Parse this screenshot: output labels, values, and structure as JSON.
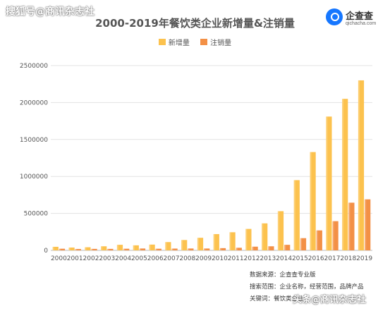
{
  "watermark_top": "搜狐号@商讯杂志社",
  "logo": {
    "name": "企查查",
    "url": "qichacha.com",
    "color": "#1677ff"
  },
  "chart_data": {
    "type": "bar",
    "title": "2000-2019年餐饮类企业新增量&注销量",
    "categories": [
      "2000",
      "2001",
      "2002",
      "2003",
      "2004",
      "2005",
      "2006",
      "2007",
      "2008",
      "2009",
      "2010",
      "2011",
      "2012",
      "2013",
      "2014",
      "2015",
      "2016",
      "2017",
      "2018",
      "2019"
    ],
    "series": [
      {
        "name": "新增量",
        "color": "#fcc24e",
        "values": [
          48000,
          38000,
          42000,
          55000,
          75000,
          68000,
          78000,
          112000,
          140000,
          170000,
          220000,
          245000,
          290000,
          365000,
          530000,
          950000,
          1330000,
          1810000,
          2050000,
          2300000
        ]
      },
      {
        "name": "注销量",
        "color": "#f39046",
        "values": [
          22000,
          18000,
          20000,
          20000,
          22000,
          25000,
          22000,
          24000,
          25000,
          25000,
          30000,
          35000,
          50000,
          55000,
          75000,
          165000,
          270000,
          395000,
          645000,
          690000
        ]
      }
    ],
    "ylim": [
      0,
      2500000
    ],
    "yticks": [
      0,
      500000,
      1000000,
      1500000,
      2000000,
      2500000
    ],
    "grid": true,
    "legend": "top-center"
  },
  "footer": [
    {
      "label": "数据来源：",
      "value": "企查查专业版"
    },
    {
      "label": "搜索范围：",
      "value": "企业名称，经营范围，品牌产品"
    },
    {
      "label": "关键词：",
      "value": "餐饮类企业"
    }
  ],
  "watermark_bottom": "头条@商讯杂志社"
}
